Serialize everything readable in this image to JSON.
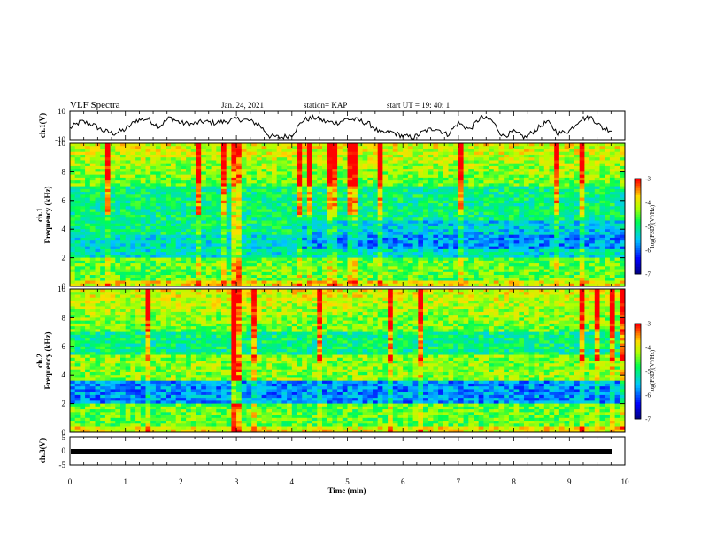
{
  "header": {
    "title": "VLF Spectra",
    "date": "Jan. 24, 2021",
    "station": "station= KAP",
    "start": "start  UT =   19: 40: 1"
  },
  "chart_data": [
    {
      "type": "line",
      "panel": "ch1-waveform",
      "ylabel": "ch.1(V)",
      "ylim": [
        -10,
        10
      ],
      "yticks": [
        "10",
        "-10"
      ],
      "xlim": [
        0,
        10
      ],
      "series": [
        {
          "x": [
            0,
            0.2,
            0.4,
            0.6,
            0.8,
            1.0,
            1.2,
            1.4,
            1.6,
            1.8,
            2.0,
            2.2,
            2.4,
            2.6,
            2.8,
            3.0,
            3.2,
            3.4,
            3.6,
            3.8,
            4.0,
            4.2,
            4.4,
            4.6,
            4.8,
            5.0,
            5.2,
            5.4,
            5.6,
            5.8,
            6.0,
            6.2,
            6.4,
            6.6,
            6.8,
            7.0,
            7.2,
            7.4,
            7.6,
            7.8,
            8.0,
            8.2,
            8.4,
            8.6,
            8.8,
            9.0,
            9.2,
            9.4,
            9.6,
            9.8
          ],
          "values": [
            -2,
            3,
            1,
            -4,
            -6,
            -3,
            4,
            5,
            -1,
            6,
            2,
            1,
            3,
            2,
            3,
            5,
            4,
            1,
            -8,
            -9,
            -7,
            4,
            6,
            3,
            2,
            5,
            4,
            1,
            -6,
            -5,
            -8,
            -9,
            -4,
            -2,
            -7,
            2,
            -3,
            6,
            4,
            -8,
            -5,
            -9,
            -3,
            3,
            -6,
            -4,
            5,
            6,
            -2,
            -4
          ]
        }
      ]
    },
    {
      "type": "heatmap",
      "panel": "ch1-spectrogram",
      "ylabel": "ch.1\nFrequency (kHz)",
      "ylim": [
        0,
        10
      ],
      "yticks": [
        "0",
        "2",
        "4",
        "6",
        "8",
        "10"
      ],
      "xlim": [
        0,
        10
      ],
      "colorbar": {
        "label": "log(PSD)(V²/Hz)",
        "range": [
          -7,
          -3
        ],
        "ticks": [
          "-3",
          "-4",
          "-5",
          "-6",
          "-7"
        ]
      }
    },
    {
      "type": "heatmap",
      "panel": "ch2-spectrogram",
      "ylabel": "ch.2\nFrequency (kHz)",
      "ylim": [
        0,
        10
      ],
      "yticks": [
        "0",
        "2",
        "4",
        "6",
        "8",
        "10"
      ],
      "xlim": [
        0,
        10
      ],
      "colorbar": {
        "label": "log(PSD)(V²/Hz)",
        "range": [
          -7,
          -3
        ],
        "ticks": [
          "-3",
          "-4",
          "-5",
          "-6",
          "-7"
        ]
      }
    },
    {
      "type": "line",
      "panel": "ch3-waveform",
      "ylabel": "ch.3(V)",
      "ylim": [
        -5,
        5
      ],
      "yticks": [
        "5",
        "0",
        "-5"
      ],
      "xlim": [
        0,
        10
      ],
      "xlabel": "Time  (min)",
      "xticks": [
        "0",
        "1",
        "2",
        "3",
        "4",
        "5",
        "6",
        "7",
        "8",
        "9",
        "10"
      ],
      "series": [
        {
          "x": [
            0,
            9.8
          ],
          "values": [
            0,
            0
          ]
        }
      ]
    }
  ]
}
